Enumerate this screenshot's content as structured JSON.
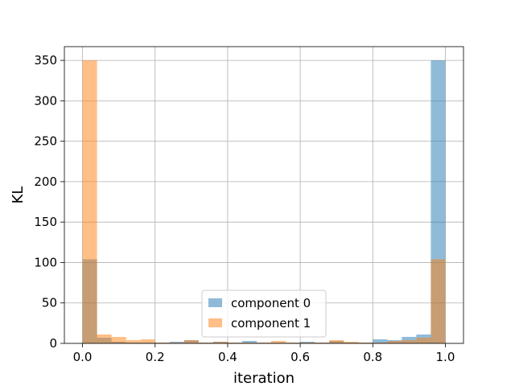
{
  "chart_data": {
    "type": "bar",
    "xlabel": "iteration",
    "ylabel": "KL",
    "xlim": [
      -0.05,
      1.05
    ],
    "ylim": [
      0,
      367
    ],
    "x_ticks": [
      "0.0",
      "0.2",
      "0.4",
      "0.6",
      "0.8",
      "1.0"
    ],
    "x_tick_values": [
      0.0,
      0.2,
      0.4,
      0.6,
      0.8,
      1.0
    ],
    "y_ticks": [
      "0",
      "50",
      "100",
      "150",
      "200",
      "250",
      "300",
      "350"
    ],
    "y_tick_values": [
      0,
      50,
      100,
      150,
      200,
      250,
      300,
      350
    ],
    "grid": true,
    "legend_position": "lower center",
    "bin_edges": [
      0.0,
      0.04,
      0.08,
      0.12,
      0.16,
      0.2,
      0.24,
      0.28,
      0.32,
      0.36,
      0.4,
      0.44,
      0.48,
      0.52,
      0.56,
      0.6,
      0.64,
      0.68,
      0.72,
      0.76,
      0.8,
      0.84,
      0.88,
      0.92,
      0.96,
      1.0
    ],
    "series": [
      {
        "name": "component 0",
        "color": "#1f77b4",
        "values": [
          104,
          7,
          2,
          1,
          1,
          1,
          2,
          4,
          1,
          2,
          1,
          3,
          1,
          1,
          1,
          2,
          1,
          3,
          1,
          1,
          5,
          4,
          8,
          11,
          350
        ]
      },
      {
        "name": "component 1",
        "color": "#ff7f0e",
        "values": [
          350,
          11,
          8,
          4,
          5,
          1,
          1,
          4,
          1,
          2,
          1,
          1,
          1,
          3,
          1,
          1,
          1,
          4,
          2,
          1,
          1,
          3,
          4,
          7,
          104
        ]
      }
    ],
    "alpha": 0.5
  }
}
